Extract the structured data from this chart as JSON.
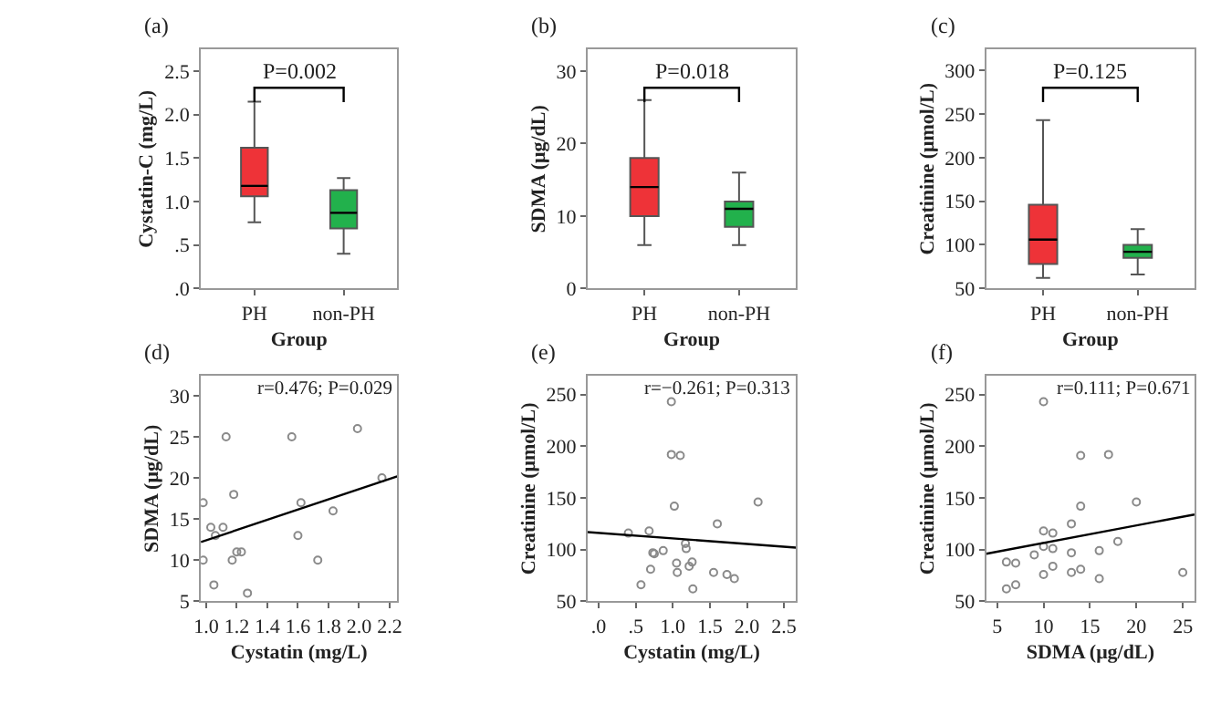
{
  "chart_data": [
    {
      "type": "box",
      "xlabel": "Group",
      "ylabel": "Cystatin-C (mg/L)",
      "annotations": [
        "(a)",
        "P=0.002"
      ],
      "categories": [
        "PH",
        "non-PH"
      ],
      "colors": [
        "#ee3338",
        "#22b14c"
      ],
      "boxes": [
        {
          "low": 0.76,
          "q1": 1.06,
          "median": 1.18,
          "q3": 1.62,
          "high": 2.15
        },
        {
          "low": 0.4,
          "q1": 0.69,
          "median": 0.87,
          "q3": 1.13,
          "high": 1.27
        }
      ],
      "ylim": [
        0,
        2.75
      ],
      "yticks": [
        {
          "value": 0,
          "label": ".0"
        },
        {
          "value": 0.5,
          "label": ".5"
        },
        {
          "value": 1,
          "label": "1.0"
        },
        {
          "value": 1.5,
          "label": "1.5"
        },
        {
          "value": 2,
          "label": "2.0"
        },
        {
          "value": 2.5,
          "label": "2.5"
        }
      ]
    },
    {
      "type": "box",
      "xlabel": "Group",
      "ylabel": "SDMA (μg/dL)",
      "annotations": [
        "(b)",
        "P=0.018"
      ],
      "categories": [
        "PH",
        "non-PH"
      ],
      "colors": [
        "#ee3338",
        "#22b14c"
      ],
      "boxes": [
        {
          "low": 6,
          "q1": 10,
          "median": 14,
          "q3": 18,
          "high": 26
        },
        {
          "low": 6,
          "q1": 8.5,
          "median": 11,
          "q3": 12,
          "high": 16
        }
      ],
      "ylim": [
        0,
        33
      ],
      "yticks": [
        0,
        10,
        20,
        30
      ]
    },
    {
      "type": "box",
      "xlabel": "Group",
      "ylabel": "Creatinine (μmol/L)",
      "annotations": [
        "(c)",
        "P=0.125"
      ],
      "categories": [
        "PH",
        "non-PH"
      ],
      "colors": [
        "#ee3338",
        "#22b14c"
      ],
      "boxes": [
        {
          "low": 62,
          "q1": 78,
          "median": 106,
          "q3": 146,
          "high": 243
        },
        {
          "low": 66,
          "q1": 85,
          "median": 92,
          "q3": 100,
          "high": 118
        }
      ],
      "ylim": [
        50,
        324
      ],
      "yticks": [
        50,
        100,
        150,
        200,
        250,
        300
      ]
    },
    {
      "type": "scatter",
      "xlabel": "Cystatin (mg/L)",
      "ylabel": "SDMA (μg/dL)",
      "annotations": [
        "(d)",
        "r=0.476; P=0.029"
      ],
      "series": [
        {
          "type": "scatter",
          "marker": "circle",
          "color": "#8a8a8a",
          "x": [
            0.98,
            0.98,
            1.03,
            1.06,
            1.05,
            1.11,
            1.13,
            1.17,
            1.18,
            1.2,
            1.23,
            1.27,
            1.56,
            1.6,
            1.62,
            1.73,
            1.83,
            1.99,
            2.15
          ],
          "values": [
            17,
            10,
            14,
            13,
            7,
            14,
            25,
            10,
            18,
            11,
            11,
            6,
            25,
            13,
            17,
            10,
            16,
            26,
            20
          ]
        },
        {
          "type": "line",
          "color": "#000000",
          "x": [
            0.965,
            2.25
          ],
          "values": [
            12.2,
            20.2
          ]
        }
      ],
      "xlim": [
        0.965,
        2.25
      ],
      "xticks": [
        {
          "value": 1,
          "label": "1.0"
        },
        1.2,
        1.4,
        1.6,
        1.8,
        {
          "value": 2,
          "label": "2.0"
        },
        2.2
      ],
      "ylim": [
        5,
        32.4
      ],
      "yticks": [
        5,
        10,
        15,
        20,
        25,
        30
      ]
    },
    {
      "type": "scatter",
      "xlabel": "Cystatin (mg/L)",
      "ylabel": "Creatinine (μmol/L)",
      "annotations": [
        "(e)",
        "r=−0.261; P=0.313"
      ],
      "series": [
        {
          "type": "scatter",
          "marker": "circle",
          "color": "#8a8a8a",
          "x": [
            0.4,
            0.57,
            0.68,
            0.7,
            0.73,
            0.75,
            0.87,
            0.98,
            0.98,
            1.02,
            1.05,
            1.06,
            1.1,
            1.17,
            1.18,
            1.22,
            1.26,
            1.27,
            1.55,
            1.6,
            1.73,
            1.83,
            2.15
          ],
          "values": [
            116,
            66,
            118,
            81,
            97,
            96,
            99,
            243,
            192,
            142,
            87,
            78,
            191,
            106,
            101,
            84,
            88,
            62,
            78,
            125,
            76,
            72,
            146
          ]
        },
        {
          "type": "line",
          "color": "#000000",
          "x": [
            -0.15,
            2.66
          ],
          "values": [
            117,
            102
          ]
        }
      ],
      "xlim": [
        -0.15,
        2.66
      ],
      "xticks": [
        {
          "value": 0,
          "label": ".0"
        },
        {
          "value": 0.5,
          "label": ".5"
        },
        {
          "value": 1,
          "label": "1.0"
        },
        {
          "value": 1.5,
          "label": "1.5"
        },
        {
          "value": 2,
          "label": "2.0"
        },
        {
          "value": 2.5,
          "label": "2.5"
        }
      ],
      "ylim": [
        50,
        268
      ],
      "yticks": [
        50,
        100,
        150,
        200,
        250
      ]
    },
    {
      "type": "scatter",
      "xlabel": "SDMA (μg/dL)",
      "ylabel": "Creatinine (μmol/L)",
      "annotations": [
        "(f)",
        "r=0.111; P=0.671"
      ],
      "series": [
        {
          "type": "scatter",
          "marker": "circle",
          "color": "#8a8a8a",
          "x": [
            6,
            6,
            7,
            7,
            9,
            10,
            10,
            10,
            10,
            11,
            11,
            11,
            13,
            13,
            13,
            14,
            14,
            14,
            16,
            16,
            17,
            18,
            20,
            25
          ],
          "values": [
            88,
            62,
            87,
            66,
            95,
            243,
            118,
            103,
            76,
            116,
            101,
            84,
            125,
            97,
            78,
            191,
            142,
            81,
            99,
            72,
            192,
            108,
            146,
            78
          ]
        },
        {
          "type": "line",
          "color": "#000000",
          "x": [
            3.83,
            26.26
          ],
          "values": [
            96,
            134
          ]
        }
      ],
      "xlim": [
        3.83,
        26.26
      ],
      "xticks": [
        5,
        10,
        15,
        20,
        25
      ],
      "ylim": [
        50,
        268
      ],
      "yticks": [
        50,
        100,
        150,
        200,
        250
      ]
    }
  ]
}
